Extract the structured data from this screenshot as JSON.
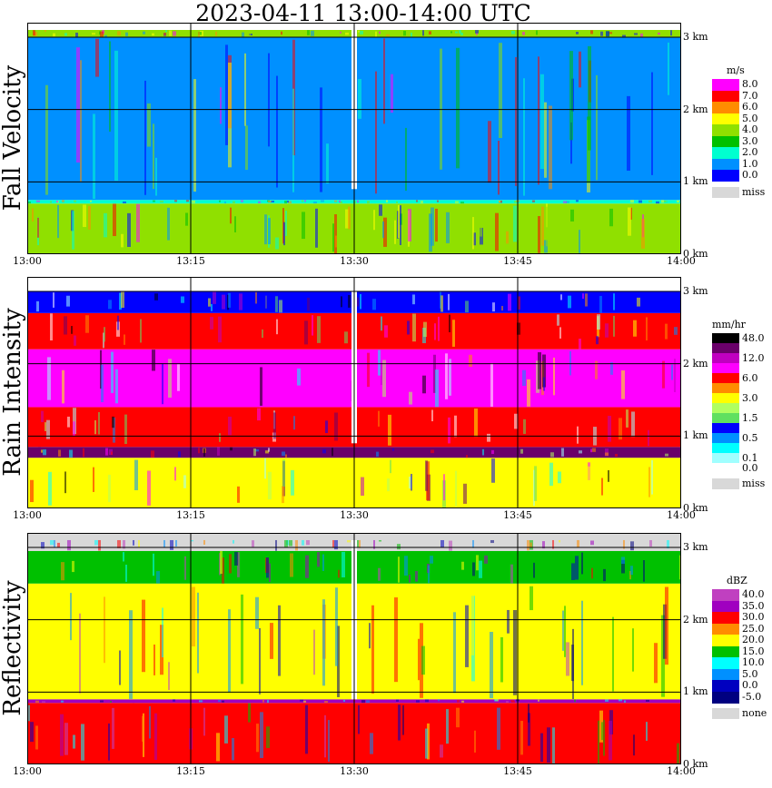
{
  "title": "2023-04-11   13:00-14:00 UTC",
  "chart_data": [
    {
      "type": "heatmap",
      "title": "Fall Velocity",
      "x_ticks": [
        "13:00",
        "13:15",
        "13:30",
        "13:45",
        "14:00"
      ],
      "y_ticks": [
        "0 km",
        "1 km",
        "2 km",
        "3 km"
      ],
      "ylim_km": [
        0,
        3.2
      ],
      "grid": true,
      "legend": {
        "unit": "m/s",
        "placement": "right",
        "levels": [
          {
            "label": "8.0",
            "color": "#ff00ff"
          },
          {
            "label": "7.0",
            "color": "#ff0000"
          },
          {
            "label": "6.0",
            "color": "#ff8c00"
          },
          {
            "label": "5.0",
            "color": "#ffff00"
          },
          {
            "label": "4.0",
            "color": "#90e000"
          },
          {
            "label": "3.0",
            "color": "#00c000"
          },
          {
            "label": "2.0",
            "color": "#00ffd0"
          },
          {
            "label": "1.0",
            "color": "#0090ff"
          },
          {
            "label": "0.0",
            "color": "#0000ff"
          }
        ],
        "missing": {
          "label": "miss",
          "color": "#d8d8d8"
        }
      },
      "layers": [
        {
          "from_km": 0,
          "to_km": 0.7,
          "color": "#90e000"
        },
        {
          "from_km": 0.7,
          "to_km": 0.75,
          "color": "#00ffd0"
        },
        {
          "from_km": 0.75,
          "to_km": 3.0,
          "color": "#0090ff"
        },
        {
          "from_km": 3.0,
          "to_km": 3.1,
          "color": "#90e000"
        }
      ]
    },
    {
      "type": "heatmap",
      "title": "Rain Intensity",
      "x_ticks": [
        "13:00",
        "13:15",
        "13:30",
        "13:45",
        "14:00"
      ],
      "y_ticks": [
        "0 km",
        "1 km",
        "2 km",
        "3 km"
      ],
      "ylim_km": [
        0,
        3.2
      ],
      "grid": true,
      "legend": {
        "unit": "mm/hr",
        "placement": "right",
        "levels": [
          {
            "label": "48.0",
            "color": "#000000"
          },
          {
            "label": "",
            "color": "#6a006a"
          },
          {
            "label": "12.0",
            "color": "#c000c0"
          },
          {
            "label": "",
            "color": "#ff00ff"
          },
          {
            "label": "6.0",
            "color": "#ff0000"
          },
          {
            "label": "",
            "color": "#ff8c00"
          },
          {
            "label": "3.0",
            "color": "#ffff00"
          },
          {
            "label": "",
            "color": "#b0ff60"
          },
          {
            "label": "1.5",
            "color": "#60e060"
          },
          {
            "label": "",
            "color": "#0000ff"
          },
          {
            "label": "0.5",
            "color": "#0090ff"
          },
          {
            "label": "",
            "color": "#00ffff"
          },
          {
            "label": "0.1",
            "color": "#a0ffff"
          },
          {
            "label": "0.0",
            "color": "#ffffff"
          }
        ],
        "missing": {
          "label": "miss",
          "color": "#d8d8d8"
        }
      },
      "layers": [
        {
          "from_km": 0,
          "to_km": 0.7,
          "color": "#ffff00"
        },
        {
          "from_km": 0.7,
          "to_km": 0.85,
          "color": "#6a006a"
        },
        {
          "from_km": 0.85,
          "to_km": 1.4,
          "color": "#ff0000"
        },
        {
          "from_km": 1.4,
          "to_km": 2.2,
          "color": "#ff00ff"
        },
        {
          "from_km": 2.2,
          "to_km": 2.7,
          "color": "#ff0000"
        },
        {
          "from_km": 2.7,
          "to_km": 3.0,
          "color": "#0000ff"
        }
      ]
    },
    {
      "type": "heatmap",
      "title": "Reflectivity",
      "x_ticks": [
        "13:00",
        "13:15",
        "13:30",
        "13:45",
        "14:00"
      ],
      "y_ticks": [
        "0 km",
        "1 km",
        "2 km",
        "3 km"
      ],
      "ylim_km": [
        0,
        3.2
      ],
      "grid": true,
      "legend": {
        "unit": "dBZ",
        "placement": "right",
        "levels": [
          {
            "label": "40.0",
            "color": "#c040c0"
          },
          {
            "label": "35.0",
            "color": "#a000c0"
          },
          {
            "label": "30.0",
            "color": "#ff0000"
          },
          {
            "label": "25.0",
            "color": "#ff8c00"
          },
          {
            "label": "20.0",
            "color": "#ffff00"
          },
          {
            "label": "15.0",
            "color": "#00c000"
          },
          {
            "label": "10.0",
            "color": "#00ffff"
          },
          {
            "label": "5.0",
            "color": "#0090ff"
          },
          {
            "label": "0.0",
            "color": "#0000c0"
          },
          {
            "label": "-5.0",
            "color": "#000080"
          }
        ],
        "missing": {
          "label": "none",
          "color": "#d8d8d8"
        }
      },
      "layers": [
        {
          "from_km": 0,
          "to_km": 0.85,
          "color": "#ff0000"
        },
        {
          "from_km": 0.85,
          "to_km": 0.9,
          "color": "#a000c0"
        },
        {
          "from_km": 0.9,
          "to_km": 2.5,
          "color": "#ffff00"
        },
        {
          "from_km": 2.5,
          "to_km": 2.95,
          "color": "#00c000"
        },
        {
          "from_km": 2.95,
          "to_km": 3.2,
          "color": "#d8d8d8"
        }
      ]
    }
  ]
}
